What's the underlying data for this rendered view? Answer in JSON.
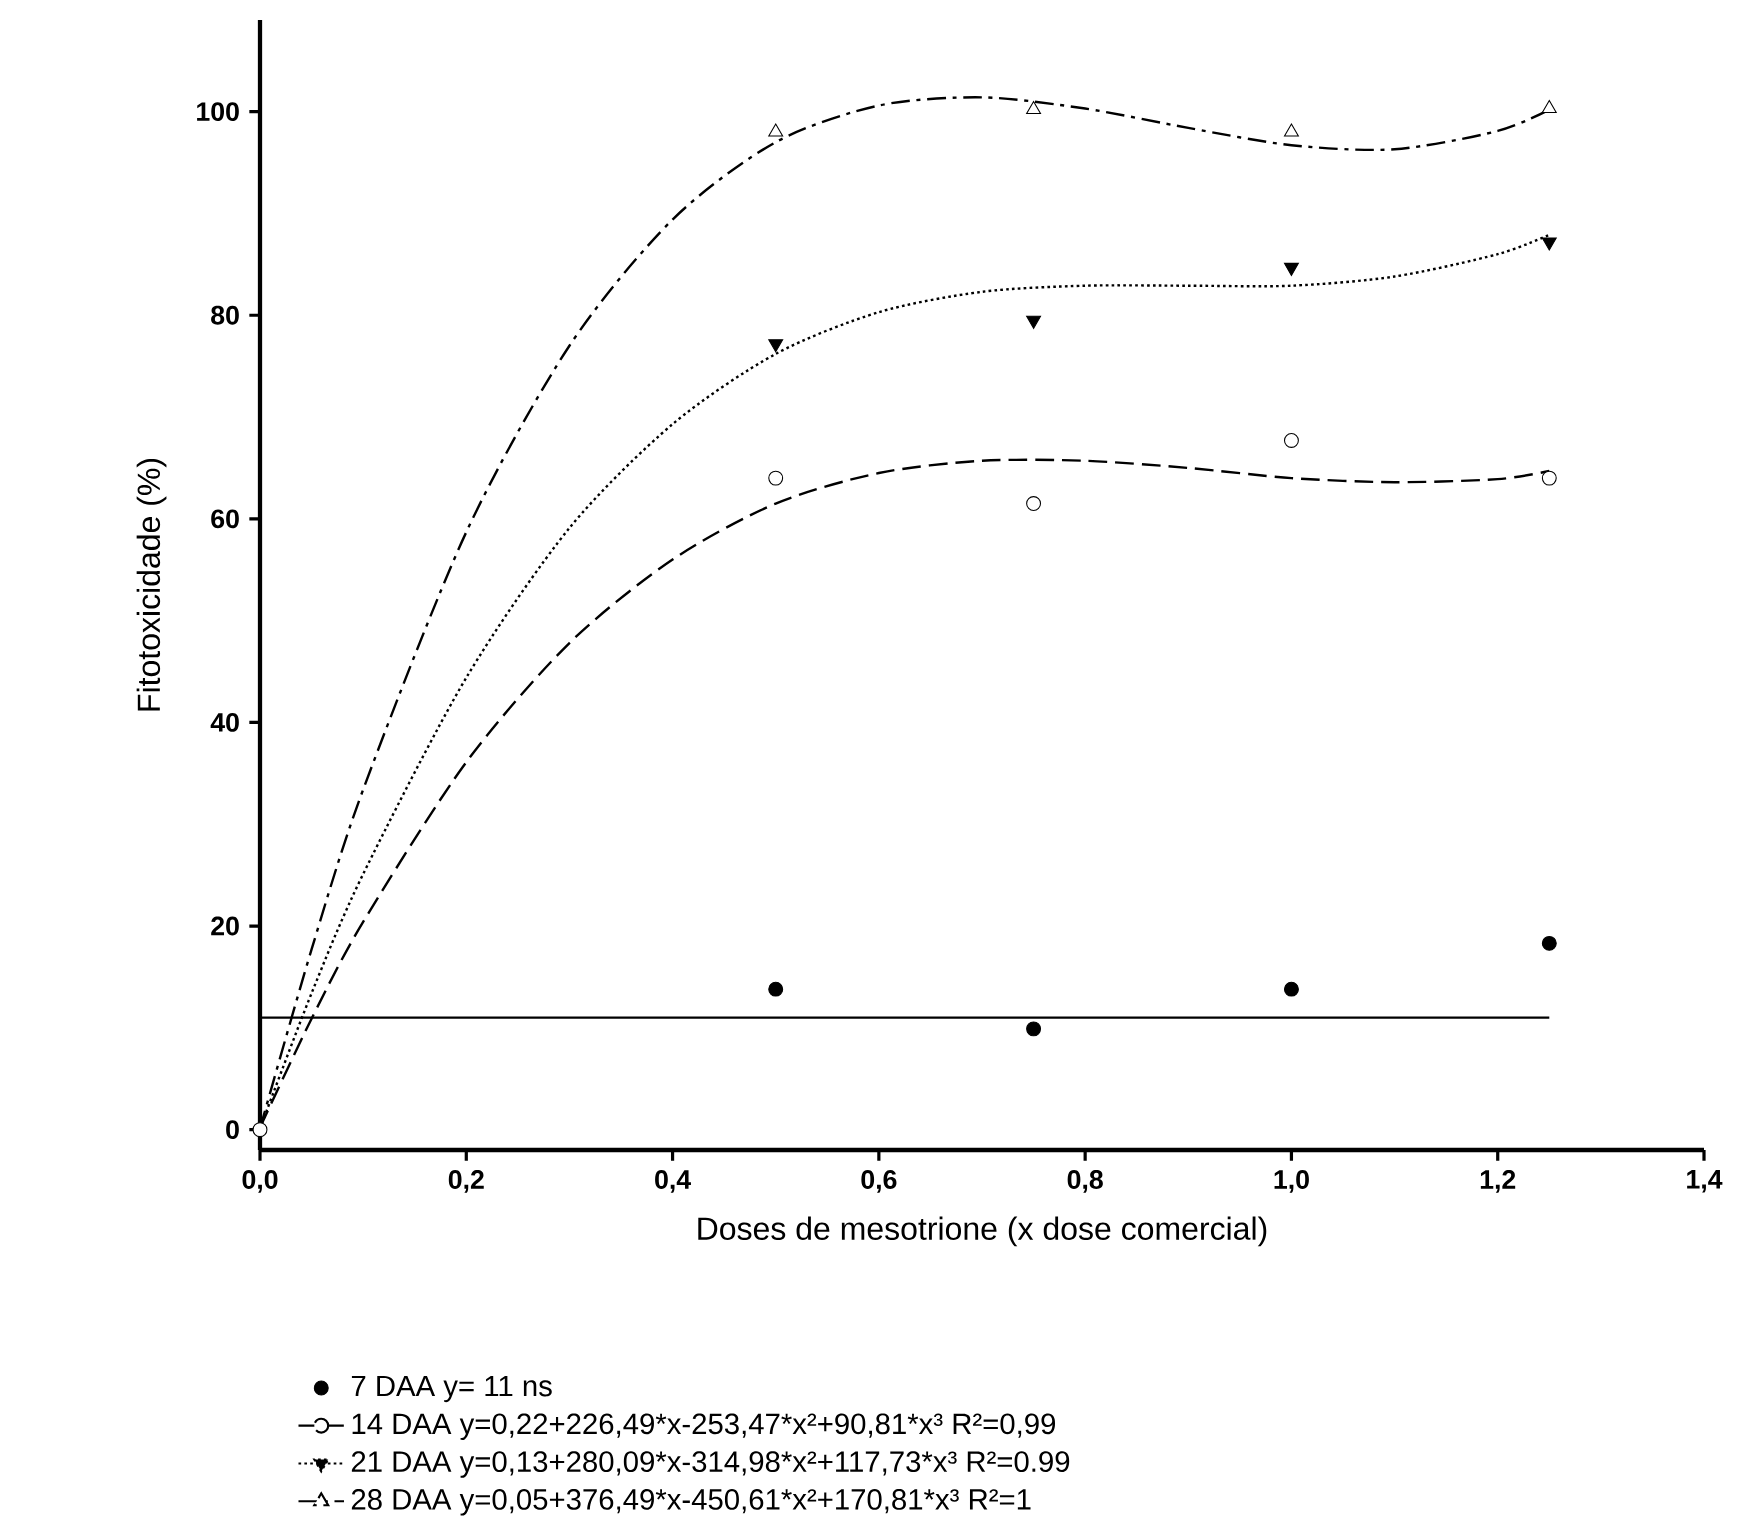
{
  "chart_data": {
    "type": "scatter",
    "xlabel": "Doses de mesotrione (x dose comercial)",
    "ylabel": "Fitotoxicidade (%)",
    "xlim": [
      0,
      1.4
    ],
    "ylim": [
      -2,
      109
    ],
    "xticks": [
      {
        "value": 0,
        "label": "0,0"
      },
      {
        "value": 0.2,
        "label": "0,2"
      },
      {
        "value": 0.4,
        "label": "0,4"
      },
      {
        "value": 0.6,
        "label": "0,6"
      },
      {
        "value": 0.8,
        "label": "0,8"
      },
      {
        "value": 1.0,
        "label": "1,0"
      },
      {
        "value": 1.2,
        "label": "1,2"
      },
      {
        "value": 1.4,
        "label": "1,4"
      }
    ],
    "yticks": [
      0,
      20,
      40,
      60,
      80,
      100
    ],
    "legend": "bottom",
    "grid": false,
    "series": [
      {
        "name": "7 DAA y= 11 ns",
        "color": "#000000",
        "marker": "circle",
        "x": [
          0.5,
          0.75,
          1.0,
          1.25
        ],
        "values": [
          13.8,
          9.9,
          13.8,
          18.3
        ]
      },
      {
        "name": "14 DAA y=0,22+226,49*x-253,47*x²+90,81*x³ R²=0,99",
        "color": "#000000",
        "marker": "circle",
        "line_style": "dashed",
        "x": [
          0,
          0.5,
          0.75,
          1.0,
          1.25
        ],
        "values": [
          0,
          64,
          61.5,
          67.7,
          64
        ]
      },
      {
        "name": "21 DAA y=0,13+280,09*x-314,98*x²+117,73*x³ R²=0.99",
        "color": "#000000",
        "marker": "triangle",
        "line_style": "dotted",
        "x": [
          0.5,
          0.75,
          1.0,
          1.25
        ],
        "values": [
          77.2,
          79.5,
          84.7,
          87.2
        ]
      },
      {
        "name": "28 DAA y=0,05+376,49*x-450,61*x²+170,81*x³ R²=1",
        "color": "#000000",
        "marker": "triangle",
        "line_style": "dashdot",
        "x": [
          0.5,
          0.75,
          1.0,
          1.25
        ],
        "values": [
          98,
          100.2,
          98,
          100.3
        ]
      },
      {
        "type": "line",
        "color": "#000000",
        "line_style": "solid",
        "x": [
          0,
          1.25
        ],
        "values": [
          11,
          11
        ]
      },
      {
        "type": "line",
        "color": "#000000",
        "line_style": "dashed",
        "x": [
          0,
          0.05,
          0.1,
          0.2,
          0.3,
          0.4,
          0.5,
          0.6,
          0.7,
          0.8,
          0.9,
          1.0,
          1.1,
          1.2,
          1.25
        ],
        "values": [
          0.2,
          10.9,
          20.4,
          36.1,
          47.8,
          56,
          61.5,
          64.5,
          65.7,
          65.7,
          65,
          64,
          63.6,
          63.9,
          64.7
        ]
      },
      {
        "type": "line",
        "color": "#000000",
        "line_style": "dotted",
        "x": [
          0,
          0.05,
          0.1,
          0.2,
          0.3,
          0.4,
          0.5,
          0.6,
          0.7,
          0.8,
          0.9,
          1.0,
          1.1,
          1.2,
          1.25
        ],
        "values": [
          0.1,
          13.4,
          25.1,
          44.4,
          59.1,
          69.3,
          76.2,
          80.3,
          82.3,
          82.9,
          82.9,
          82.9,
          83.8,
          86,
          87.9
        ]
      },
      {
        "type": "line",
        "color": "#000000",
        "line_style": "dashdot",
        "x": [
          0,
          0.05,
          0.1,
          0.2,
          0.3,
          0.4,
          0.5,
          0.6,
          0.7,
          0.8,
          0.9,
          1.0,
          1.1,
          1.2,
          1.25
        ],
        "values": [
          0.1,
          17.7,
          33.4,
          58.7,
          77,
          89.4,
          97,
          100.6,
          101.4,
          100.3,
          98.4,
          96.7,
          96.3,
          98.1,
          100.2
        ]
      }
    ]
  }
}
